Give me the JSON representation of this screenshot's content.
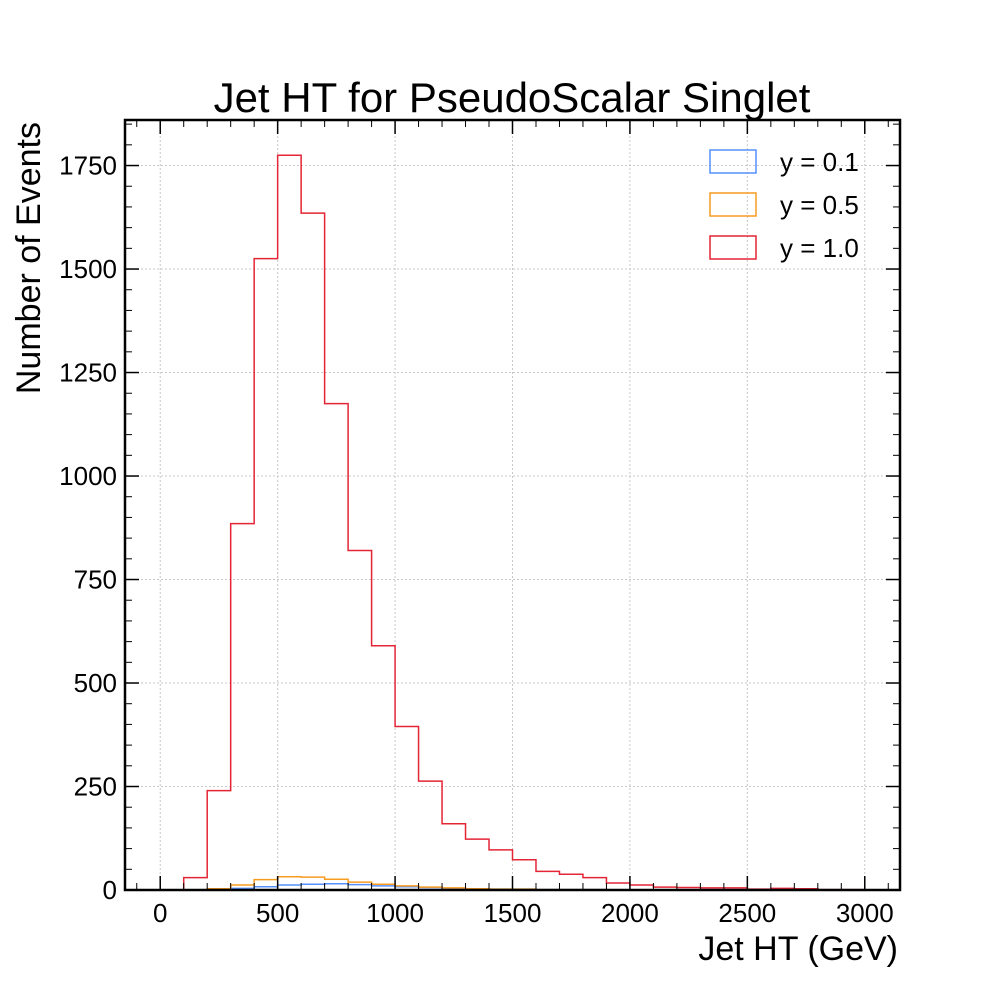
{
  "chart_data": {
    "type": "bar",
    "histtype": "step",
    "title": "Jet HT for PseudoScalar Singlet",
    "xlabel": "Jet HT (GeV)",
    "ylabel": "Number of Events",
    "xlim": [
      -150,
      3150
    ],
    "ylim": [
      0,
      1860
    ],
    "bin_edges": [
      0,
      100,
      200,
      300,
      400,
      500,
      600,
      700,
      800,
      900,
      1000,
      1100,
      1200,
      1300,
      1400,
      1500,
      1600,
      1700,
      1800,
      1900,
      2000,
      2100,
      2200,
      2300,
      2400,
      2500,
      2600,
      2700,
      2800,
      2900,
      3000
    ],
    "xticks": [
      0,
      500,
      1000,
      1500,
      2000,
      2500,
      3000
    ],
    "xtick_labels": [
      "0",
      "500",
      "1000",
      "1500",
      "2000",
      "2500",
      "3000"
    ],
    "yticks": [
      0,
      250,
      500,
      750,
      1000,
      1250,
      1500,
      1750
    ],
    "ytick_labels": [
      "0",
      "250",
      "500",
      "750",
      "1000",
      "1250",
      "1500",
      "1750"
    ],
    "grid": true,
    "legend_position": "top-right",
    "series": [
      {
        "name": "y = 0.1",
        "color": "#5790fc",
        "values": [
          0,
          0,
          1,
          4,
          8,
          12,
          14,
          15,
          13,
          10,
          8,
          6,
          4,
          3,
          2,
          2,
          1,
          1,
          1,
          0,
          0,
          0,
          0,
          0,
          0,
          0,
          0,
          0,
          0,
          0
        ]
      },
      {
        "name": "y = 0.5",
        "color": "#f89c20",
        "values": [
          0,
          0,
          3,
          12,
          25,
          32,
          31,
          26,
          19,
          14,
          10,
          7,
          5,
          3,
          2,
          2,
          1,
          1,
          1,
          0,
          0,
          0,
          0,
          0,
          0,
          0,
          0,
          0,
          0,
          0
        ]
      },
      {
        "name": "y = 1.0",
        "color": "#e42536",
        "values": [
          0,
          30,
          240,
          885,
          1525,
          1775,
          1635,
          1175,
          820,
          590,
          395,
          263,
          160,
          123,
          97,
          73,
          45,
          38,
          30,
          17,
          12,
          7,
          6,
          5,
          5,
          2,
          4,
          3,
          1,
          1
        ]
      }
    ]
  }
}
